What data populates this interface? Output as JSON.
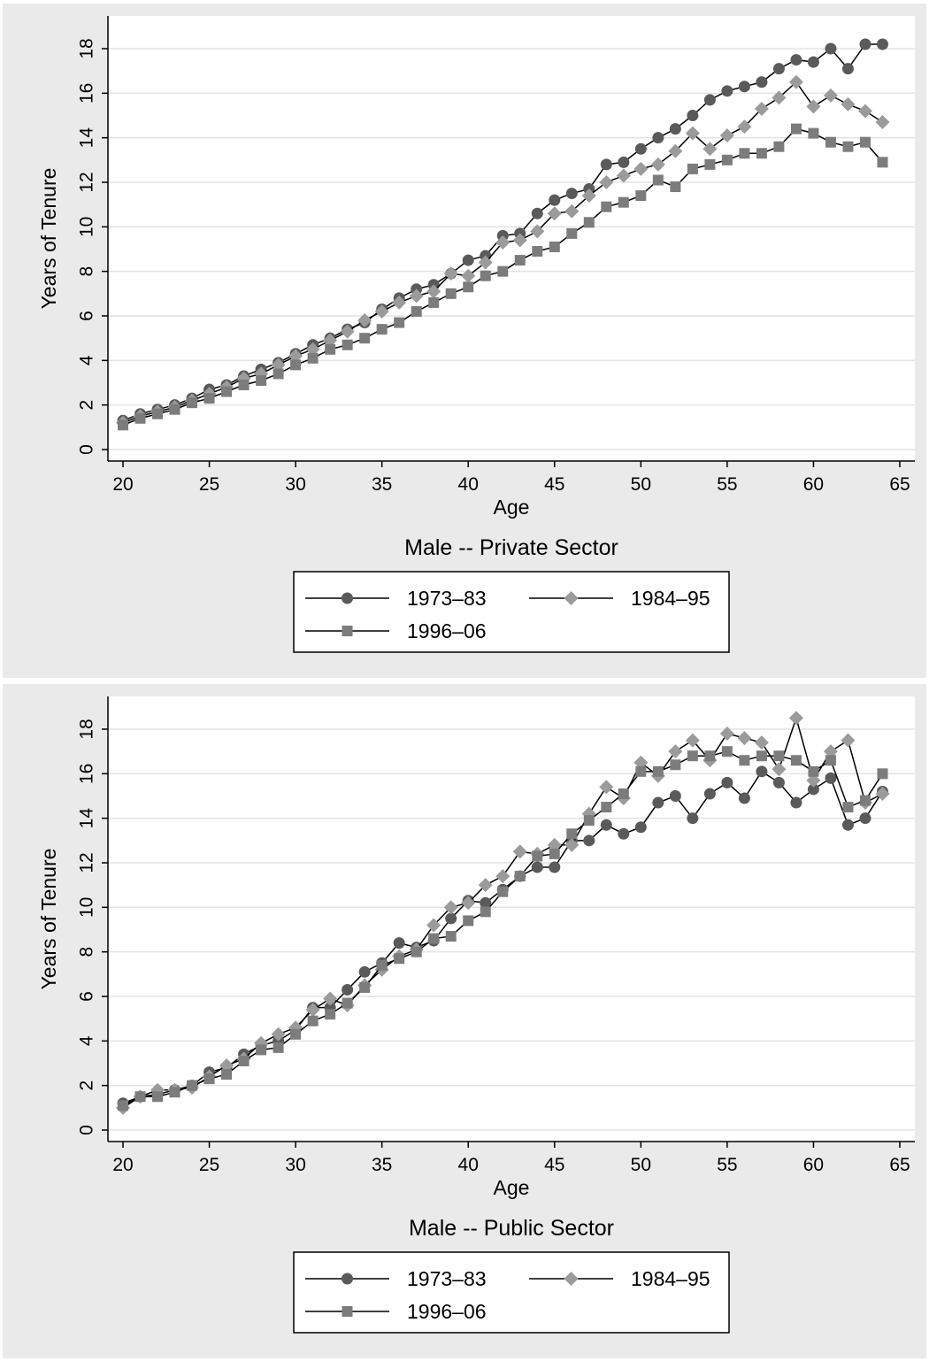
{
  "chart_data": [
    {
      "type": "line",
      "title": "Male -- Private Sector",
      "xlabel": "Age",
      "ylabel": "Years of Tenure",
      "xlim": [
        20,
        65
      ],
      "ylim": [
        0,
        18
      ],
      "xticks": [
        20,
        25,
        30,
        35,
        40,
        45,
        50,
        55,
        60,
        65
      ],
      "yticks": [
        0,
        2,
        4,
        6,
        8,
        10,
        12,
        14,
        16,
        18
      ],
      "grid": true,
      "legend_position": "bottom",
      "x": [
        20,
        21,
        22,
        23,
        24,
        25,
        26,
        27,
        28,
        29,
        30,
        31,
        32,
        33,
        34,
        35,
        36,
        37,
        38,
        39,
        40,
        41,
        42,
        43,
        44,
        45,
        46,
        47,
        48,
        49,
        50,
        51,
        52,
        53,
        54,
        55,
        56,
        57,
        58,
        59,
        60,
        61,
        62,
        63,
        64
      ],
      "series": [
        {
          "name": "1973–83",
          "marker": "circle",
          "color": "#5a5a5a",
          "values": [
            1.3,
            1.6,
            1.8,
            2.0,
            2.3,
            2.7,
            2.9,
            3.3,
            3.6,
            3.9,
            4.3,
            4.7,
            5.0,
            5.4,
            5.7,
            6.3,
            6.8,
            7.2,
            7.4,
            7.9,
            8.5,
            8.7,
            9.6,
            9.7,
            10.6,
            11.2,
            11.5,
            11.7,
            12.8,
            12.9,
            13.5,
            14.0,
            14.4,
            15.0,
            15.7,
            16.1,
            16.3,
            16.5,
            17.1,
            17.5,
            17.4,
            18.0,
            17.1,
            18.2,
            18.2
          ]
        },
        {
          "name": "1984–95",
          "marker": "diamond",
          "color": "#9b9b9b",
          "values": [
            1.2,
            1.5,
            1.7,
            1.9,
            2.2,
            2.5,
            2.8,
            3.2,
            3.4,
            3.8,
            4.2,
            4.5,
            4.9,
            5.3,
            5.8,
            6.2,
            6.6,
            6.9,
            7.1,
            7.9,
            7.8,
            8.4,
            9.3,
            9.4,
            9.8,
            10.6,
            10.7,
            11.4,
            12.0,
            12.3,
            12.6,
            12.8,
            13.4,
            14.2,
            13.5,
            14.1,
            14.5,
            15.3,
            15.8,
            16.5,
            15.4,
            15.9,
            15.5,
            15.2,
            14.7
          ]
        },
        {
          "name": "1996–06",
          "marker": "square",
          "color": "#7c7c7c",
          "values": [
            1.1,
            1.4,
            1.6,
            1.8,
            2.1,
            2.3,
            2.6,
            2.9,
            3.1,
            3.4,
            3.8,
            4.1,
            4.5,
            4.7,
            5.0,
            5.4,
            5.7,
            6.2,
            6.6,
            7.0,
            7.3,
            7.8,
            8.0,
            8.5,
            8.9,
            9.1,
            9.7,
            10.2,
            10.9,
            11.1,
            11.4,
            12.1,
            11.8,
            12.6,
            12.8,
            13.0,
            13.3,
            13.3,
            13.6,
            14.4,
            14.2,
            13.8,
            13.6,
            13.8,
            12.9
          ]
        }
      ]
    },
    {
      "type": "line",
      "title": "Male -- Public Sector",
      "xlabel": "Age",
      "ylabel": "Years of Tenure",
      "xlim": [
        20,
        65
      ],
      "ylim": [
        0,
        18
      ],
      "xticks": [
        20,
        25,
        30,
        35,
        40,
        45,
        50,
        55,
        60,
        65
      ],
      "yticks": [
        0,
        2,
        4,
        6,
        8,
        10,
        12,
        14,
        16,
        18
      ],
      "grid": true,
      "legend_position": "bottom",
      "x": [
        20,
        21,
        22,
        23,
        24,
        25,
        26,
        27,
        28,
        29,
        30,
        31,
        32,
        33,
        34,
        35,
        36,
        37,
        38,
        39,
        40,
        41,
        42,
        43,
        44,
        45,
        46,
        47,
        48,
        49,
        50,
        51,
        52,
        53,
        54,
        55,
        56,
        57,
        58,
        59,
        60,
        61,
        62,
        63,
        64
      ],
      "series": [
        {
          "name": "1973–83",
          "marker": "circle",
          "color": "#5a5a5a",
          "values": [
            1.2,
            1.5,
            1.6,
            1.8,
            2.0,
            2.6,
            2.8,
            3.4,
            3.8,
            4.0,
            4.5,
            5.5,
            5.5,
            6.3,
            7.1,
            7.5,
            8.4,
            8.2,
            8.5,
            9.5,
            10.3,
            10.2,
            10.8,
            11.4,
            11.8,
            11.8,
            13.0,
            13.0,
            13.7,
            13.3,
            13.6,
            14.7,
            15.0,
            14.0,
            15.1,
            15.6,
            14.9,
            16.1,
            15.6,
            14.7,
            15.3,
            15.8,
            13.7,
            14.0,
            15.2
          ]
        },
        {
          "name": "1984–95",
          "marker": "diamond",
          "color": "#9b9b9b",
          "values": [
            1.0,
            1.5,
            1.8,
            1.8,
            1.9,
            2.4,
            2.9,
            3.2,
            3.9,
            4.3,
            4.6,
            5.4,
            5.9,
            5.6,
            6.5,
            7.2,
            7.8,
            8.1,
            9.2,
            10.0,
            10.2,
            11.0,
            11.4,
            12.5,
            12.4,
            12.8,
            12.8,
            14.2,
            15.4,
            14.9,
            16.5,
            15.9,
            17.0,
            17.5,
            16.6,
            17.8,
            17.6,
            17.4,
            16.2,
            18.5,
            15.7,
            17.0,
            17.5,
            14.7,
            15.1
          ]
        },
        {
          "name": "1996–06",
          "marker": "square",
          "color": "#7c7c7c",
          "values": [
            1.1,
            1.5,
            1.5,
            1.7,
            2.0,
            2.3,
            2.5,
            3.1,
            3.6,
            3.7,
            4.3,
            4.9,
            5.2,
            5.7,
            6.4,
            7.4,
            7.7,
            8.0,
            8.6,
            8.7,
            9.4,
            9.8,
            10.7,
            11.4,
            12.3,
            12.4,
            13.3,
            13.9,
            14.5,
            15.1,
            16.1,
            16.1,
            16.4,
            16.8,
            16.8,
            17.0,
            16.6,
            16.8,
            16.8,
            16.6,
            16.1,
            16.6,
            14.5,
            14.8,
            16.0
          ]
        }
      ]
    }
  ]
}
